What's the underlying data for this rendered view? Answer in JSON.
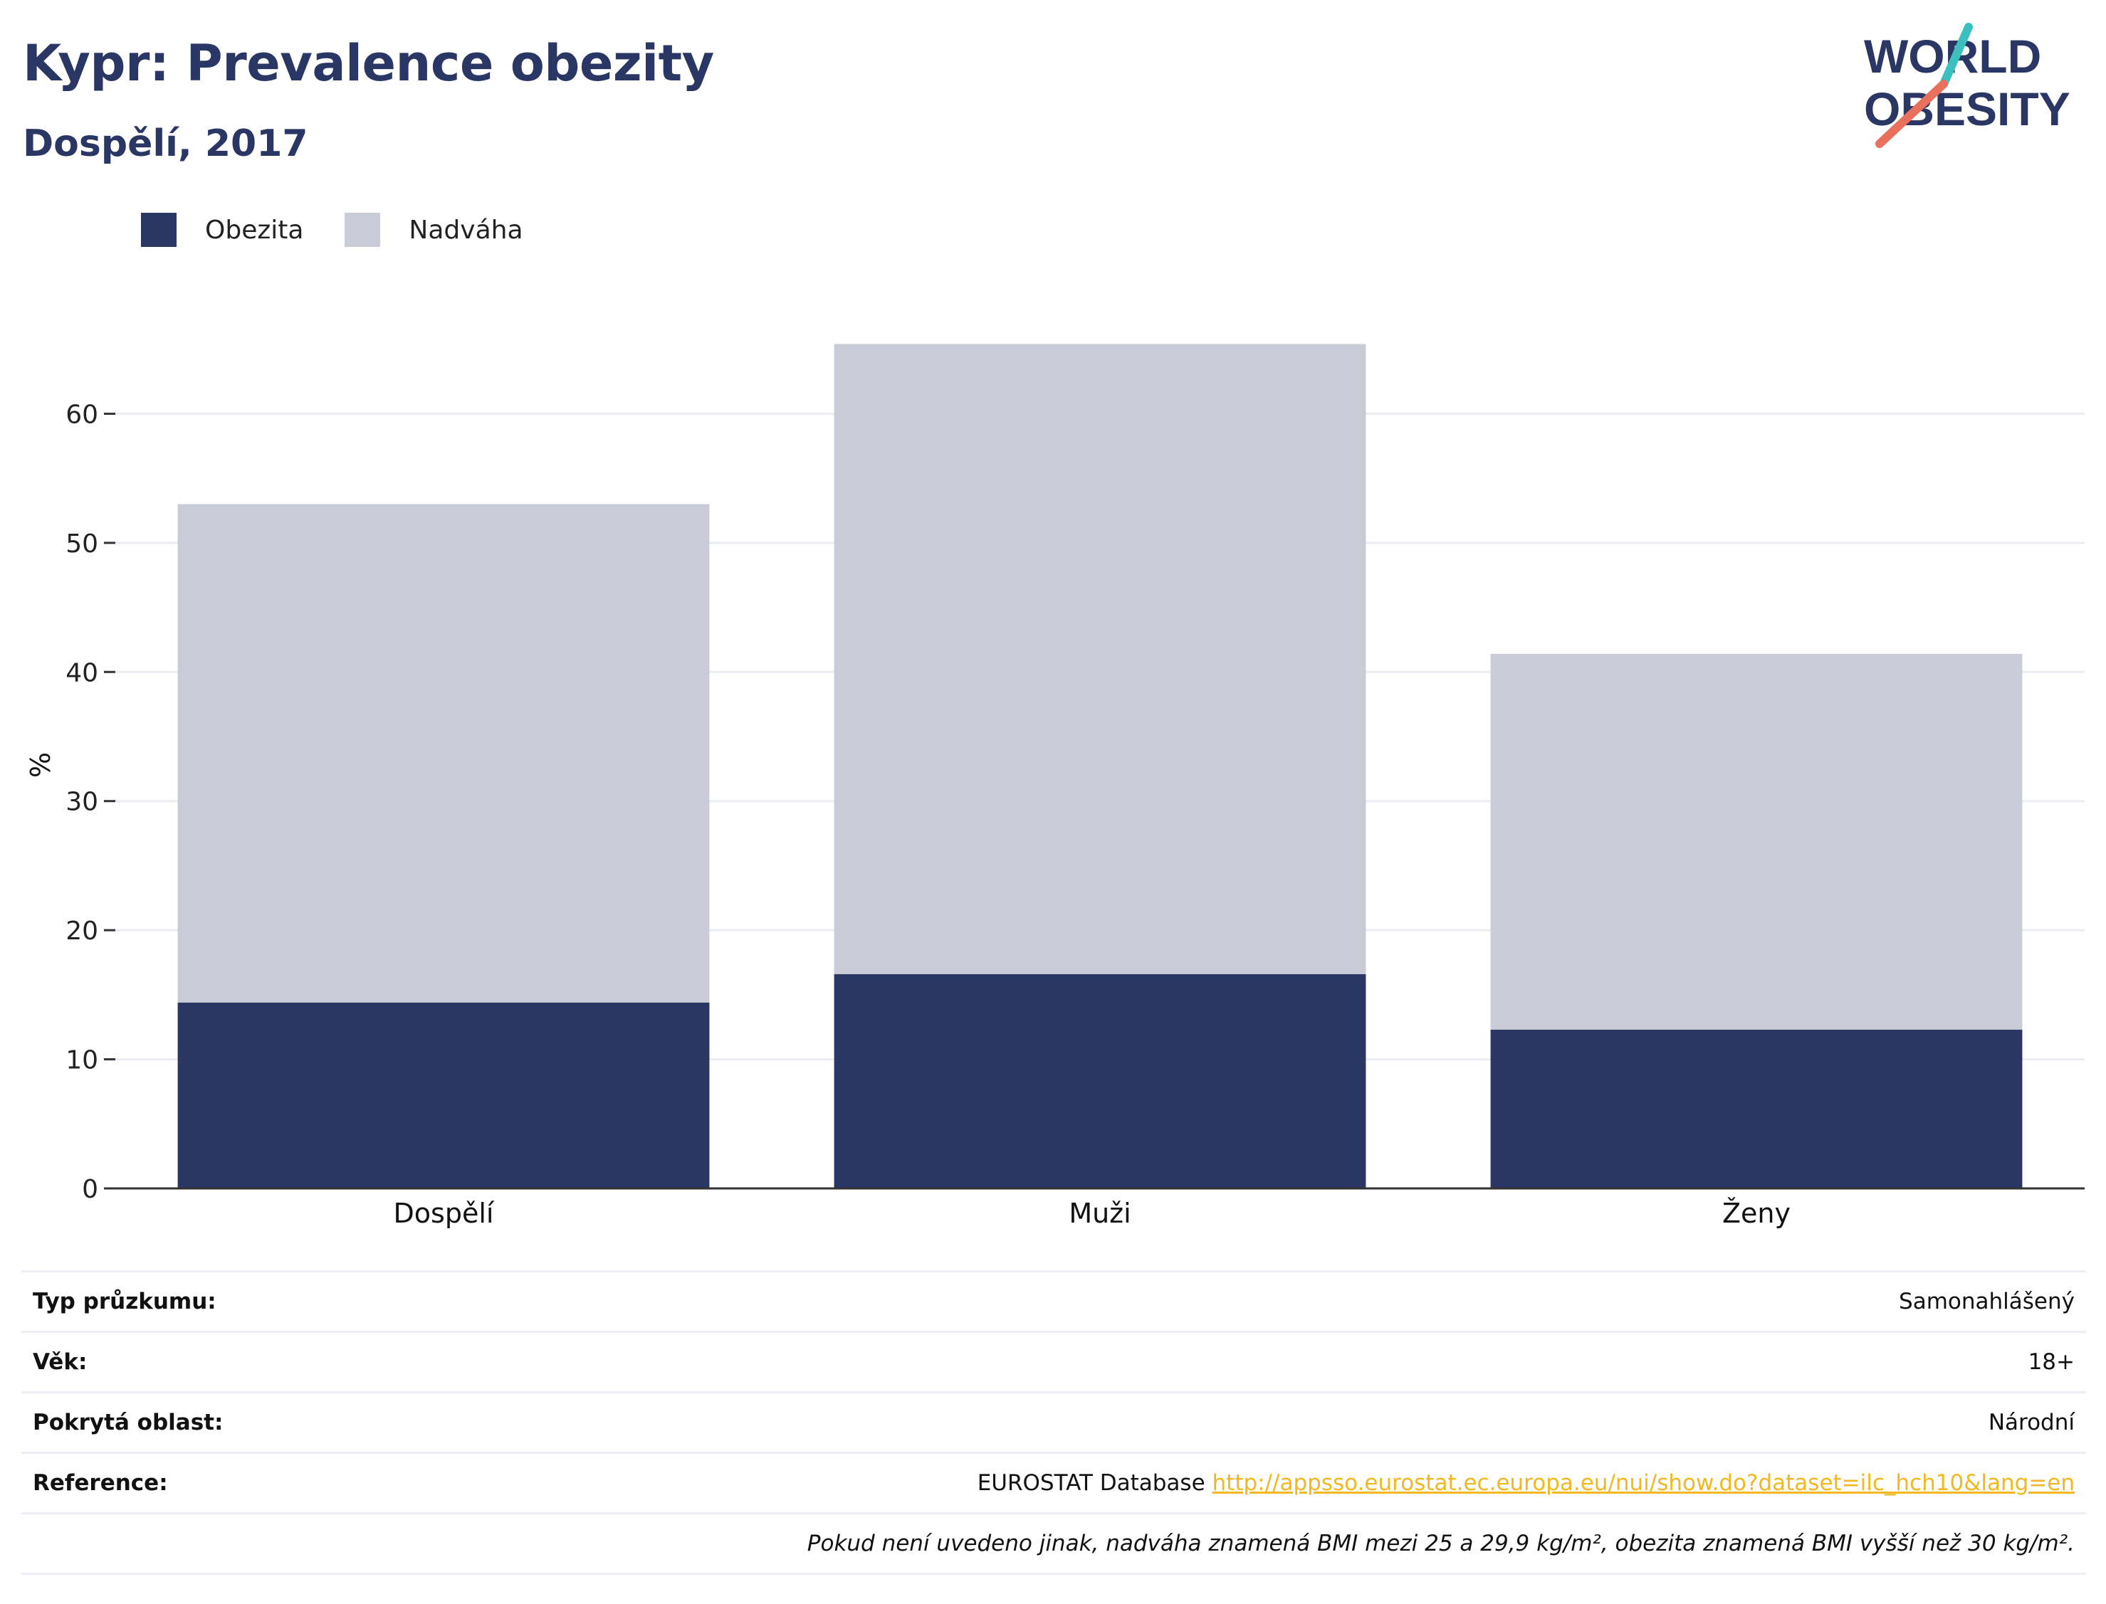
{
  "header": {
    "title": "Kypr: Prevalence obezity",
    "subtitle": "Dospělí, 2017"
  },
  "logo": {
    "line1": "WORLD",
    "line2": "OBESITY",
    "slash_colors": [
      "#3bbfbf",
      "#e8705c"
    ]
  },
  "legend": [
    {
      "label": "Obezita",
      "color": "#2a3664"
    },
    {
      "label": "Nadváha",
      "color": "#c9cbd6"
    }
  ],
  "chart_data": {
    "type": "bar",
    "stacked": true,
    "categories": [
      "Dospělí",
      "Muži",
      "Ženy"
    ],
    "series": [
      {
        "name": "Obezita",
        "values": [
          14.4,
          16.6,
          12.3
        ],
        "color": "#2a3664"
      },
      {
        "name": "Nadváha",
        "values": [
          38.6,
          48.8,
          29.1
        ],
        "color": "#c9cbd6"
      }
    ],
    "ylabel": "%",
    "ylim": [
      0,
      70
    ],
    "yticks": [
      0,
      10,
      20,
      30,
      40,
      50,
      60
    ],
    "grid": true,
    "legend_position": "top-left"
  },
  "info": {
    "rows": [
      {
        "key": "Typ průzkumu:",
        "value": "Samonahlášený"
      },
      {
        "key": "Věk:",
        "value": "18+"
      },
      {
        "key": "Pokrytá oblast:",
        "value": "Národní"
      }
    ],
    "reference": {
      "key": "Reference:",
      "text": "EUROSTAT Database",
      "link": "http://appsso.eurostat.ec.europa.eu/nui/show.do?dataset=ilc_hch10&lang=en"
    },
    "note": "Pokud není uvedeno jinak, nadváha znamená BMI mezi 25 a 29,9 kg/m², obezita znamená BMI vyšší než 30 kg/m²."
  }
}
